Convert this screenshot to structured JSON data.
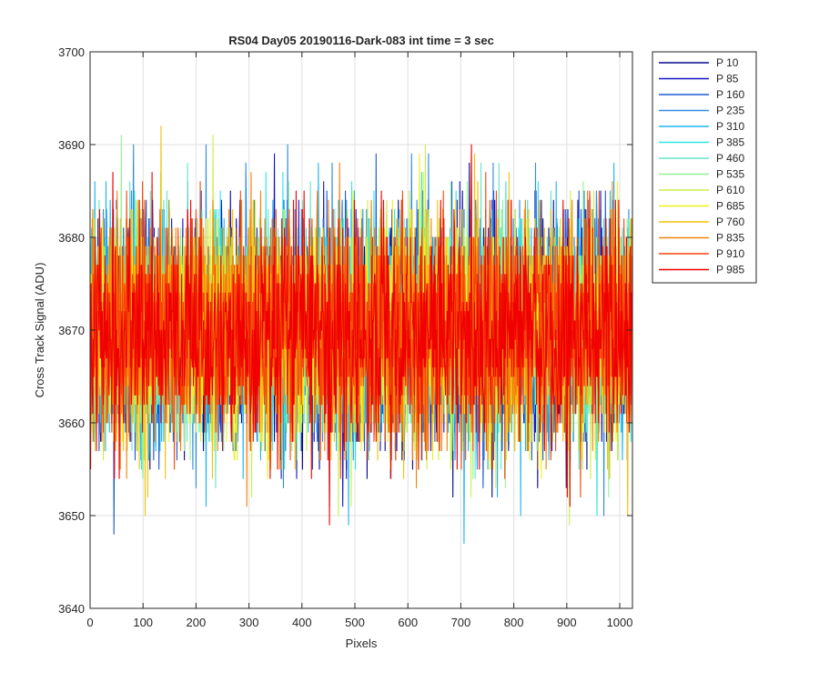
{
  "chart_data": {
    "type": "line",
    "title": "RS04 Day05 20190116-Dark-083 int time = 3 sec",
    "xlabel": "Pixels",
    "ylabel": "Cross Track Signal (ADU)",
    "xlim": [
      0,
      1024
    ],
    "ylim": [
      3640,
      3700
    ],
    "xticks": [
      "0",
      "100",
      "200",
      "300",
      "400",
      "500",
      "600",
      "700",
      "800",
      "900",
      "1000"
    ],
    "yticks": [
      "3640",
      "3650",
      "3660",
      "3670",
      "3680",
      "3690",
      "3700"
    ],
    "grid": true,
    "legend_position": "outside-top-right",
    "signal": {
      "mean": 3670,
      "typical_range": [
        3658,
        3683
      ],
      "observed_min": 3642,
      "observed_max": 3700,
      "samples_per_series": 1024
    },
    "series": [
      {
        "name": "P 10",
        "color": "#0a0a8c"
      },
      {
        "name": "P 85",
        "color": "#1414c8"
      },
      {
        "name": "P 160",
        "color": "#1e5ad2"
      },
      {
        "name": "P 235",
        "color": "#2f8ae6"
      },
      {
        "name": "P 310",
        "color": "#1fb4f0"
      },
      {
        "name": "P 385",
        "color": "#2de6e6"
      },
      {
        "name": "P 460",
        "color": "#64e6c8"
      },
      {
        "name": "P 535",
        "color": "#96f096"
      },
      {
        "name": "P 610",
        "color": "#c8f046"
      },
      {
        "name": "P 685",
        "color": "#f0f01e"
      },
      {
        "name": "P 760",
        "color": "#f5c00a"
      },
      {
        "name": "P 835",
        "color": "#f5820a"
      },
      {
        "name": "P 910",
        "color": "#f5460a"
      },
      {
        "name": "P 985",
        "color": "#f00000"
      }
    ]
  }
}
